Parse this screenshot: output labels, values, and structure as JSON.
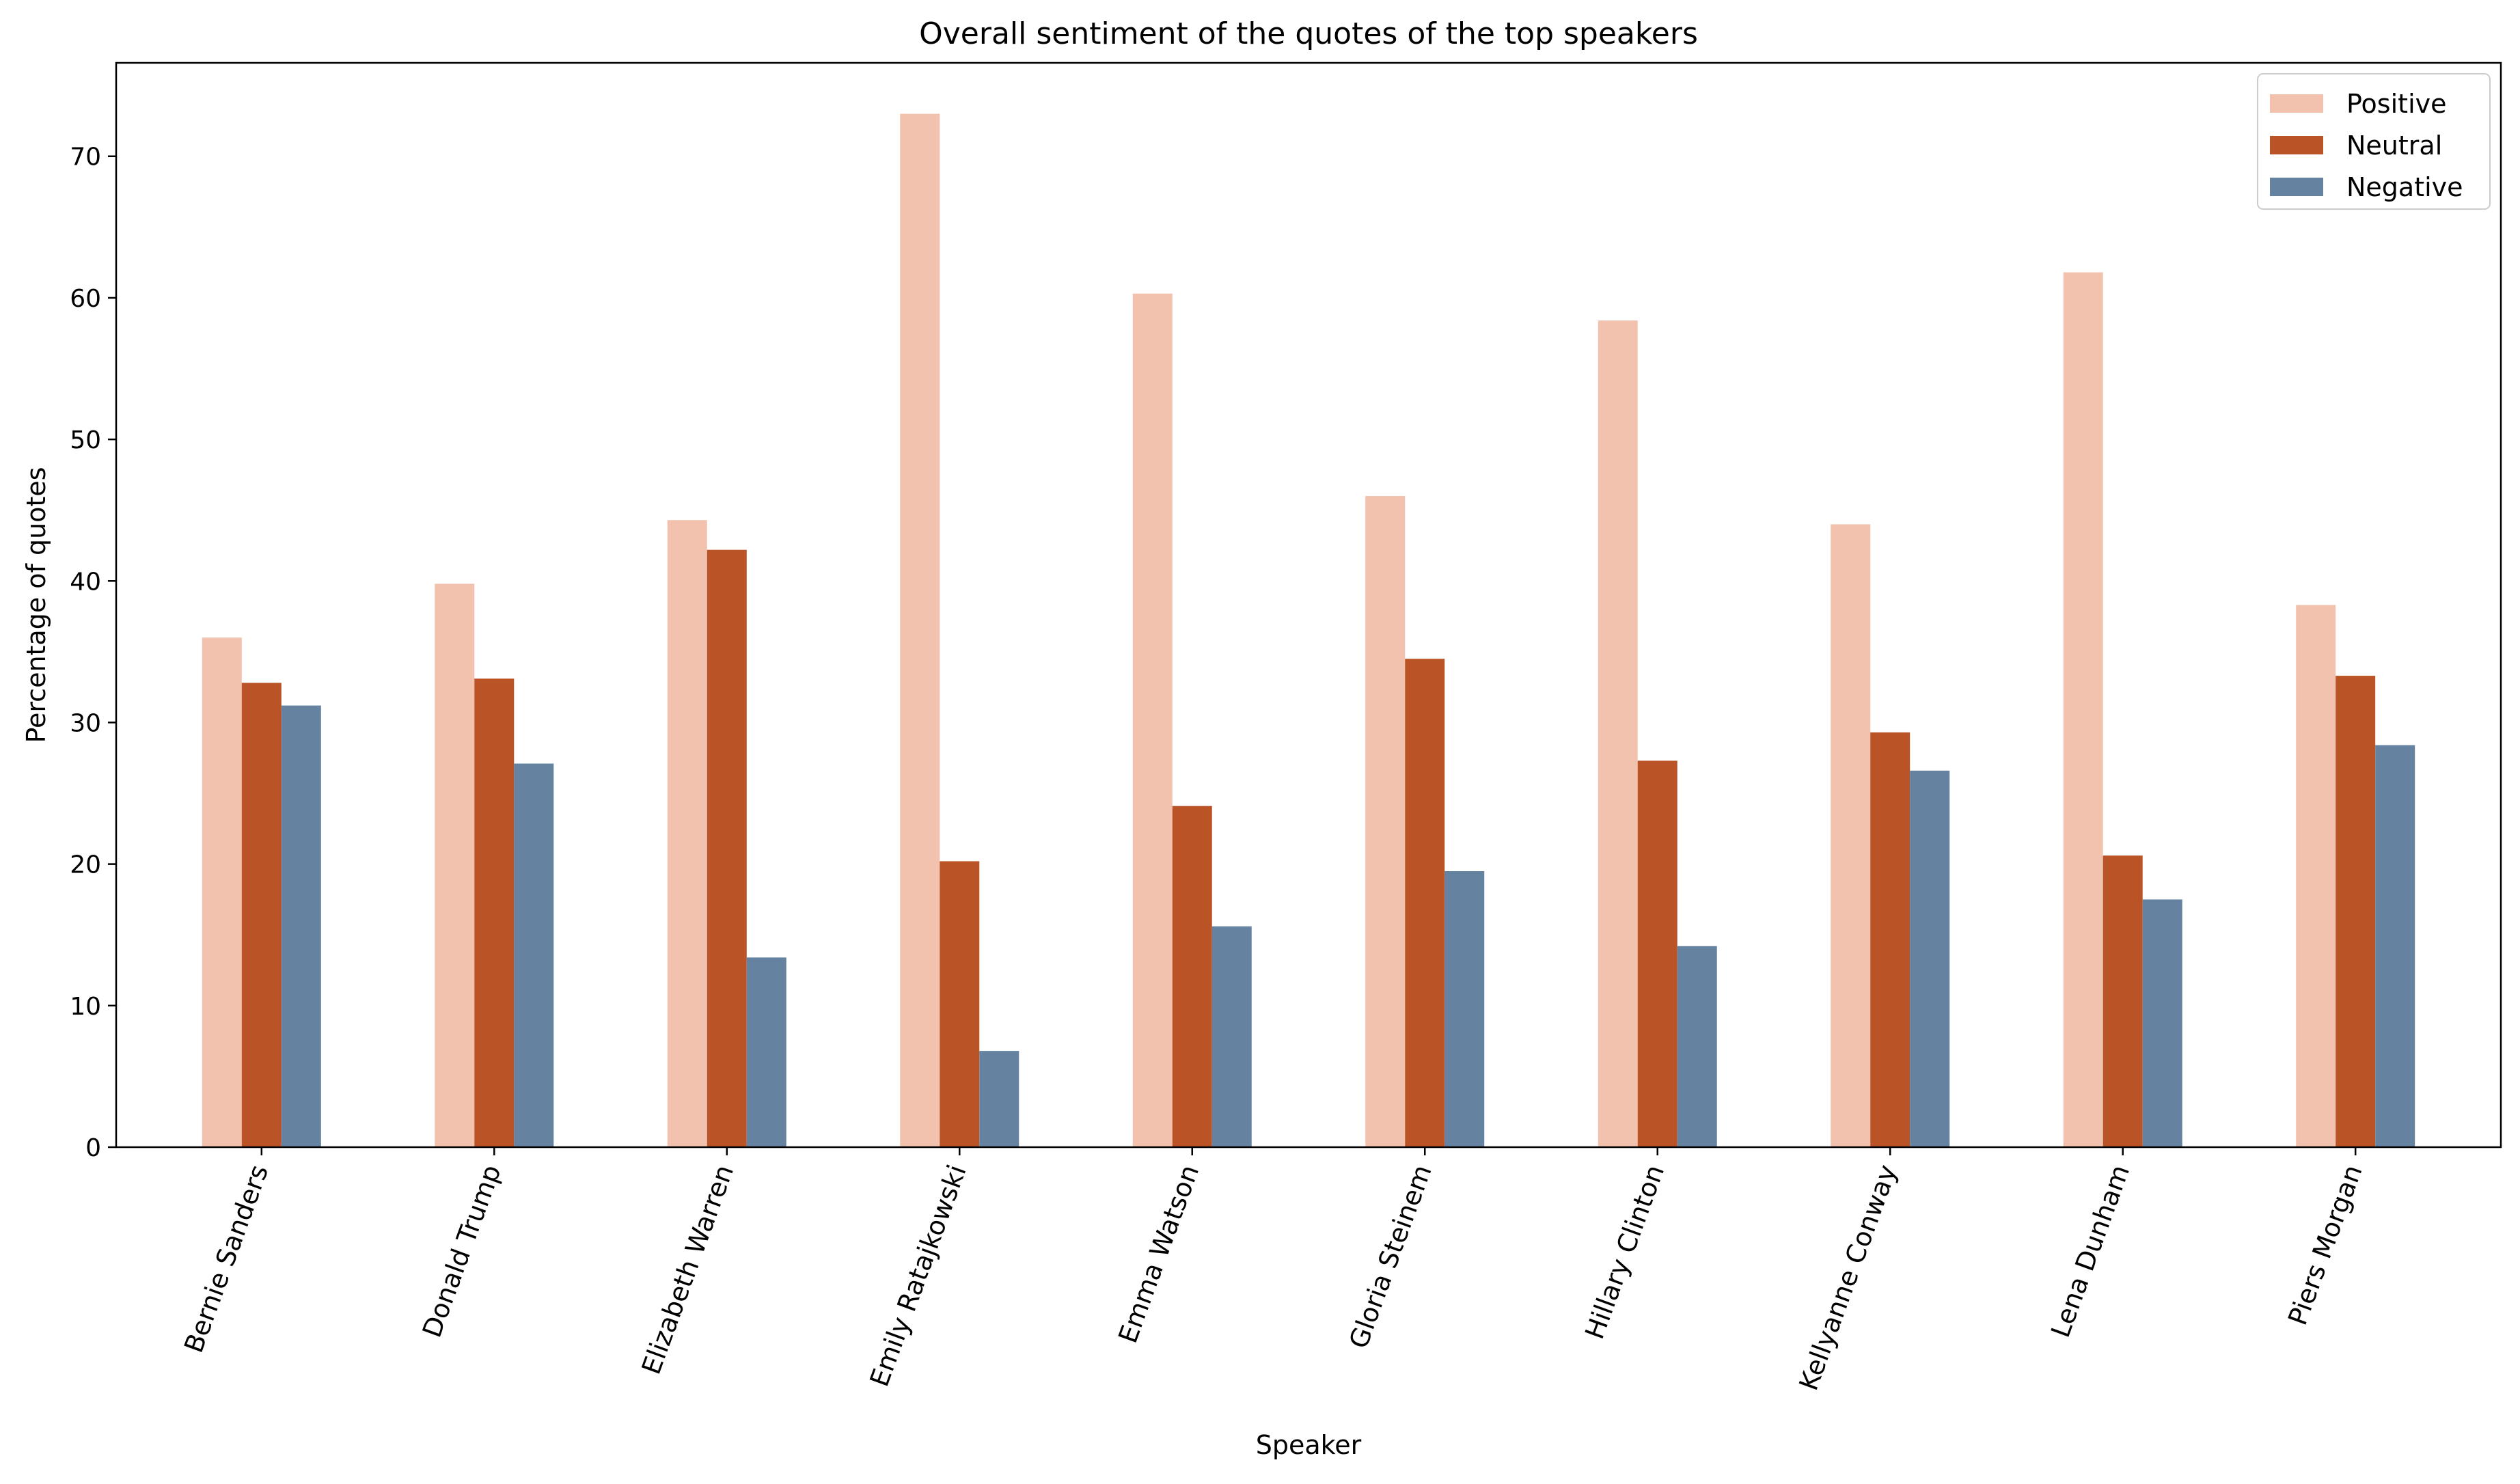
{
  "chart_data": {
    "type": "bar",
    "title": "Overall sentiment of the quotes of the top speakers",
    "xlabel": "Speaker",
    "ylabel": "Percentage of quotes",
    "ylim": [
      0,
      76.6
    ],
    "yticks": [
      0,
      10,
      20,
      30,
      40,
      50,
      60,
      70
    ],
    "grid": false,
    "legend_position": "top-right",
    "categories": [
      "Bernie Sanders",
      "Donald Trump",
      "Elizabeth Warren",
      "Emily Ratajkowski",
      "Emma Watson",
      "Gloria Steinem",
      "Hillary Clinton",
      "Kellyanne Conway",
      "Lena Dunham",
      "Piers Morgan"
    ],
    "series": [
      {
        "name": "Positive",
        "color": "#F2C2AE",
        "values": [
          36.0,
          39.8,
          44.3,
          73.0,
          60.3,
          46.0,
          58.4,
          44.0,
          61.8,
          38.3
        ]
      },
      {
        "name": "Neutral",
        "color": "#BA5427",
        "values": [
          32.8,
          33.1,
          42.2,
          20.2,
          24.1,
          34.5,
          27.3,
          29.3,
          20.6,
          33.3
        ]
      },
      {
        "name": "Negative",
        "color": "#6583A0",
        "values": [
          31.2,
          27.1,
          13.4,
          6.8,
          15.6,
          19.5,
          14.2,
          26.6,
          17.5,
          28.4
        ]
      }
    ]
  }
}
